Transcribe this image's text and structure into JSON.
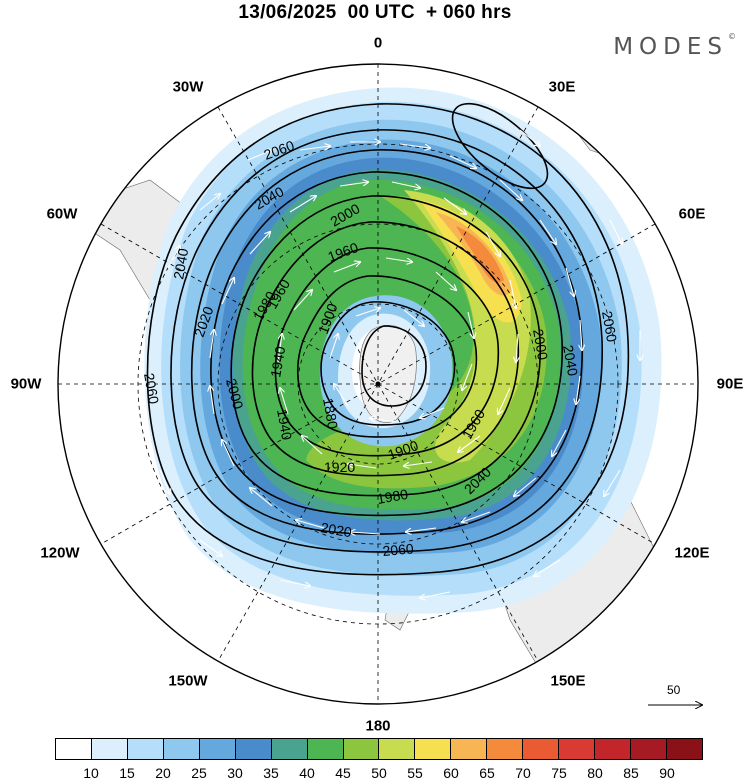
{
  "title": "13/06/2025  00 UTC  + 060 hrs",
  "brand": "MODES",
  "longitude_labels": {
    "lon_0": "0",
    "lon_30e": "30E",
    "lon_60e": "60E",
    "lon_90e": "90E",
    "lon_120e": "120E",
    "lon_150e": "150E",
    "lon_180": "180",
    "lon_150w": "150W",
    "lon_120w": "120W",
    "lon_90w": "90W",
    "lon_60w": "60W",
    "lon_30w": "30W"
  },
  "contour_labels": [
    "1880",
    "1900",
    "1900",
    "1920",
    "1940",
    "1940",
    "1960",
    "1960",
    "1960",
    "1980",
    "1980",
    "2000",
    "2000",
    "2000",
    "2020",
    "2020",
    "2040",
    "2040",
    "2040",
    "2040",
    "2060",
    "2060",
    "2060",
    "2060"
  ],
  "reference_vector": "50",
  "colorbar": {
    "colors": [
      "#ffffff",
      "#dbeffc",
      "#b4defa",
      "#8ec8ef",
      "#64a8de",
      "#4a8ccb",
      "#4aa38f",
      "#4db552",
      "#8cc63f",
      "#c7dc4e",
      "#f6e04f",
      "#f7b553",
      "#f38a3c",
      "#ea5b33",
      "#d93a33",
      "#c2262b",
      "#a51a23",
      "#8b1118"
    ],
    "ticks": [
      "10",
      "15",
      "20",
      "25",
      "30",
      "35",
      "40",
      "45",
      "50",
      "55",
      "60",
      "65",
      "70",
      "75",
      "80",
      "85",
      "90"
    ]
  }
}
